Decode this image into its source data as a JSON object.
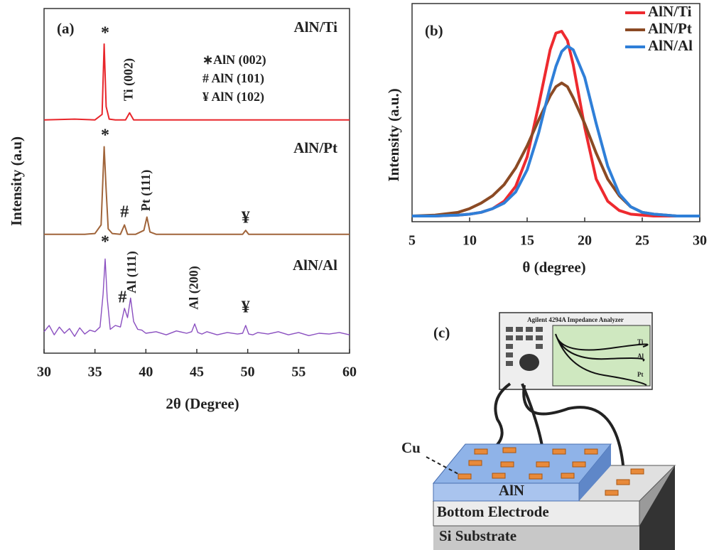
{
  "chart_data": [
    {
      "type": "line",
      "panel_label": "(a)",
      "xlabel": "2θ (Degree)",
      "ylabel": "Intensity (a.u)",
      "xlim": [
        30,
        60
      ],
      "xticks": [
        30,
        35,
        40,
        45,
        50,
        55,
        60
      ],
      "notes": [
        "∗AlN (002)",
        "# AlN (101)",
        "¥ AlN (102)"
      ],
      "series": [
        {
          "name": "AlN/Ti",
          "color": "#e8262b",
          "x": [
            30,
            33,
            35,
            35.7,
            35.9,
            36.1,
            36.4,
            37,
            38,
            38.4,
            38.8,
            40,
            45,
            50,
            55,
            60
          ],
          "values": [
            3,
            4,
            3,
            10,
            100,
            20,
            4,
            3,
            3,
            12,
            3,
            3,
            3,
            3,
            3,
            3
          ]
        },
        {
          "name": "AlN/Pt",
          "color": "#a0643a",
          "x": [
            30,
            32,
            34,
            35,
            35.6,
            35.9,
            36.1,
            36.3,
            36.7,
            37.5,
            37.9,
            38.2,
            39,
            39.8,
            40.1,
            40.4,
            41,
            43,
            45,
            47,
            49.5,
            49.8,
            50.1,
            52,
            55,
            58,
            60
          ],
          "values": [
            3,
            3,
            3,
            4,
            15,
            115,
            60,
            10,
            4,
            3,
            15,
            3,
            3,
            8,
            25,
            6,
            3,
            3,
            3,
            3,
            3,
            8,
            3,
            3,
            3,
            3,
            3
          ]
        },
        {
          "name": "AlN/Al",
          "color": "#8a4fc0",
          "x": [
            30,
            30.5,
            31,
            31.5,
            32,
            32.5,
            33,
            33.5,
            34,
            34.5,
            35,
            35.5,
            35.8,
            36,
            36.2,
            36.5,
            37,
            37.5,
            37.9,
            38.2,
            38.5,
            38.8,
            39.2,
            39.6,
            40,
            41,
            42,
            43,
            44,
            44.5,
            44.8,
            45.1,
            45.5,
            46,
            47,
            48,
            49,
            49.5,
            49.8,
            50.1,
            50.5,
            51,
            52,
            53,
            54,
            55,
            56,
            57,
            58,
            59,
            60
          ],
          "values": [
            12,
            20,
            8,
            18,
            10,
            16,
            6,
            17,
            9,
            14,
            12,
            18,
            60,
            105,
            55,
            15,
            20,
            18,
            42,
            30,
            55,
            25,
            15,
            14,
            10,
            12,
            8,
            13,
            10,
            12,
            22,
            11,
            9,
            12,
            8,
            11,
            9,
            10,
            20,
            9,
            8,
            11,
            9,
            12,
            8,
            11,
            7,
            10,
            9,
            11,
            8
          ]
        }
      ],
      "annotations": [
        {
          "text": "*",
          "x": 36
        },
        {
          "text": "Ti (002)",
          "x": 38.4
        },
        {
          "text": "*",
          "x": 36
        },
        {
          "text": "#",
          "x": 37.9
        },
        {
          "text": "Pt (111)",
          "x": 40.1
        },
        {
          "text": "¥",
          "x": 49.8
        },
        {
          "text": "*",
          "x": 36
        },
        {
          "text": "#",
          "x": 37.7
        },
        {
          "text": "Al (111)",
          "x": 38.7
        },
        {
          "text": "Al (200)",
          "x": 44.8
        },
        {
          "text": "¥",
          "x": 49.8
        }
      ]
    },
    {
      "type": "line",
      "panel_label": "(b)",
      "xlabel": "θ (degree)",
      "ylabel": "Intensity (a.u.)",
      "xlim": [
        5,
        30
      ],
      "xticks": [
        5,
        10,
        15,
        20,
        25,
        30
      ],
      "legend": "top-right",
      "x": [
        5,
        7,
        9,
        10,
        11,
        12,
        13,
        14,
        15,
        16,
        17,
        17.5,
        18,
        18.5,
        19,
        20,
        21,
        22,
        23,
        24,
        25,
        26,
        28,
        30
      ],
      "series": [
        {
          "name": "AlN/Ti",
          "color": "#ee2a2f",
          "values": [
            0,
            0,
            0.5,
            1,
            2,
            4,
            8,
            16,
            32,
            60,
            90,
            99,
            100,
            95,
            82,
            48,
            20,
            8,
            3,
            1,
            0.5,
            0,
            0,
            0
          ]
        },
        {
          "name": "AlN/Pt",
          "color": "#8b4a24",
          "values": [
            0,
            0.5,
            2,
            4,
            7,
            11,
            17,
            26,
            38,
            52,
            65,
            70,
            72,
            70,
            64,
            50,
            34,
            20,
            11,
            5,
            2,
            1,
            0,
            0
          ]
        },
        {
          "name": "AlN/Al",
          "color": "#2f7fd8",
          "values": [
            0,
            0,
            0.5,
            1,
            2,
            4,
            7,
            13,
            25,
            45,
            70,
            81,
            89,
            92,
            90,
            75,
            50,
            27,
            12,
            5,
            2,
            1,
            0,
            0
          ]
        }
      ]
    }
  ],
  "diagram": {
    "panel_label": "(c)",
    "instrument": "Agilent 4294A Impedance Analyzer",
    "screen_labels": [
      "Ti",
      "Al",
      "Pt"
    ],
    "cu": "Cu",
    "aln": "AlN",
    "bottom": "Bottom Electrode",
    "substrate": "Si Substrate"
  }
}
